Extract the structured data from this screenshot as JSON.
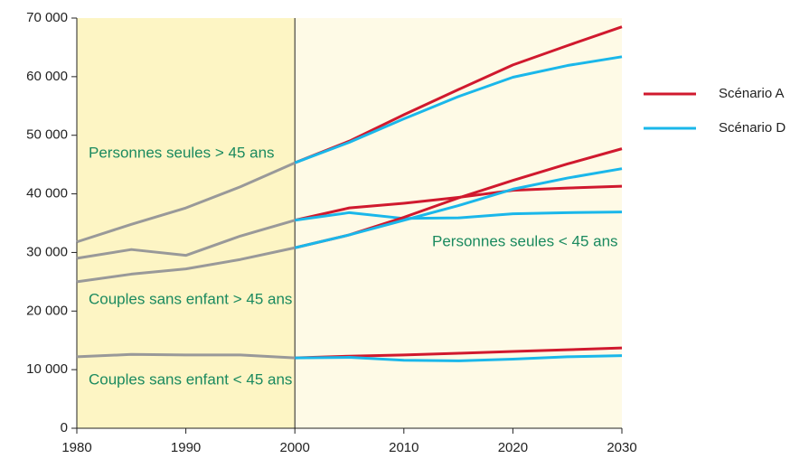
{
  "chart_data": {
    "type": "line",
    "x": [
      1980,
      1985,
      1990,
      1995,
      2000,
      2005,
      2010,
      2015,
      2020,
      2025,
      2030
    ],
    "xlim": [
      1980,
      2030
    ],
    "xticks": [
      1980,
      1990,
      2000,
      2010,
      2020,
      2030
    ],
    "ylim": [
      0,
      70000
    ],
    "yticks": [
      {
        "value": 0,
        "label": "0"
      },
      {
        "value": 10000,
        "label": "10 000"
      },
      {
        "value": 20000,
        "label": "20 000"
      },
      {
        "value": 30000,
        "label": "30 000"
      },
      {
        "value": 40000,
        "label": "40 000"
      },
      {
        "value": 50000,
        "label": "50 000"
      },
      {
        "value": 60000,
        "label": "60 000"
      },
      {
        "value": 70000,
        "label": "70 000"
      }
    ],
    "highlight": [
      1980,
      2000
    ],
    "legend": [
      {
        "name": "Scénario A",
        "color": "#d0192e"
      },
      {
        "name": "Scénario D",
        "color": "#1ab7ea"
      }
    ],
    "annotations": [
      "Personnes seules > 45 ans",
      "Personnes seules < 45 ans",
      "Couples sans enfant > 45 ans",
      "Couples sans enfant < 45 ans"
    ],
    "series": [
      {
        "color": "#999999",
        "values": [
          31800,
          34800,
          37600,
          41200,
          45300,
          null,
          null,
          null,
          null,
          null,
          null
        ]
      },
      {
        "color": "#d0192e",
        "values": [
          null,
          null,
          null,
          null,
          45300,
          49000,
          53500,
          57800,
          62000,
          65300,
          68500
        ]
      },
      {
        "color": "#1ab7ea",
        "values": [
          null,
          null,
          null,
          null,
          45300,
          48800,
          52800,
          56600,
          59900,
          61900,
          63400
        ]
      },
      {
        "color": "#999999",
        "values": [
          29000,
          30500,
          29500,
          32800,
          35500,
          null,
          null,
          null,
          null,
          null,
          null
        ]
      },
      {
        "color": "#d0192e",
        "values": [
          null,
          null,
          null,
          null,
          35500,
          37600,
          38400,
          39400,
          40600,
          41000,
          41300
        ]
      },
      {
        "color": "#1ab7ea",
        "values": [
          null,
          null,
          null,
          null,
          35500,
          36800,
          35800,
          35900,
          36600,
          36800,
          36900
        ]
      },
      {
        "color": "#999999",
        "values": [
          25000,
          26300,
          27200,
          28800,
          30800,
          null,
          null,
          null,
          null,
          null,
          null
        ]
      },
      {
        "color": "#d0192e",
        "values": [
          null,
          null,
          null,
          null,
          30800,
          33000,
          36000,
          39300,
          42300,
          45100,
          47700
        ]
      },
      {
        "color": "#1ab7ea",
        "values": [
          null,
          null,
          null,
          null,
          30800,
          33000,
          35500,
          38000,
          40800,
          42700,
          44300
        ]
      },
      {
        "color": "#999999",
        "values": [
          12200,
          12600,
          12500,
          12500,
          12000,
          null,
          null,
          null,
          null,
          null,
          null
        ]
      },
      {
        "color": "#d0192e",
        "values": [
          null,
          null,
          null,
          null,
          12000,
          12300,
          12500,
          12800,
          13100,
          13400,
          13700
        ]
      },
      {
        "color": "#1ab7ea",
        "values": [
          null,
          null,
          null,
          null,
          12000,
          12100,
          11600,
          11500,
          11800,
          12200,
          12400
        ]
      }
    ]
  }
}
